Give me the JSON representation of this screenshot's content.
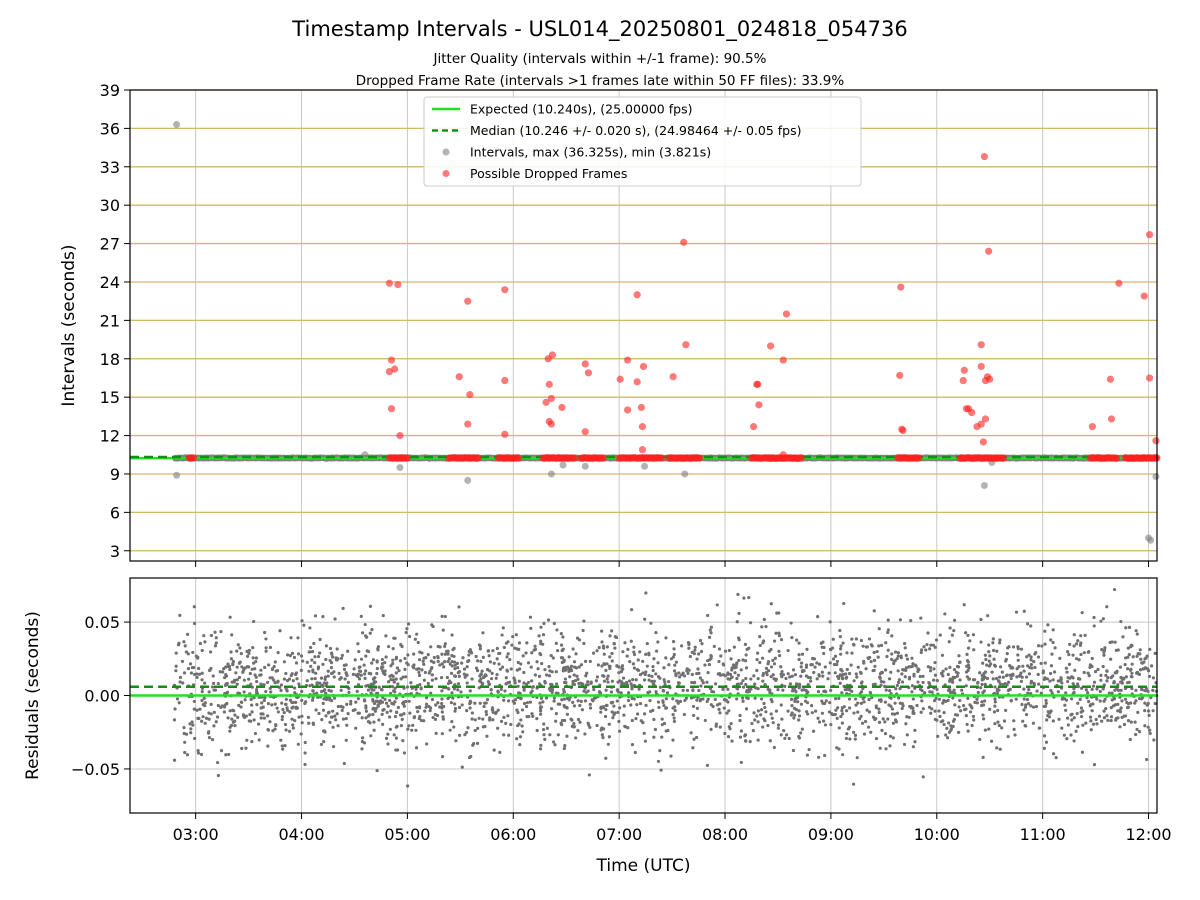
{
  "chart_data": [
    {
      "type": "scatter",
      "title": "Timestamp Intervals - USL014_20250801_024818_054736",
      "subtitle_lines": [
        "Jitter Quality (intervals within +/-1 frame): 90.5%",
        "Dropped Frame Rate (intervals >1 frames late within 50 FF files): 33.9%"
      ],
      "xlabel": "",
      "ylabel": "Intervals (seconds)",
      "xlim_hours": [
        2.38,
        12.08
      ],
      "ylim": [
        2.2,
        39
      ],
      "yticks": [
        3,
        6,
        9,
        12,
        15,
        18,
        21,
        24,
        27,
        30,
        33,
        36,
        39
      ],
      "ytick_labels": [
        "3",
        "6",
        "9",
        "12",
        "15",
        "18",
        "21",
        "24",
        "27",
        "30",
        "33",
        "36",
        "39"
      ],
      "hlines_every_frame_s": 3,
      "grid": true,
      "legend_position": "upper center",
      "legend": [
        "Expected (10.240s), (25.00000 fps)",
        "Median (10.246 +/- 0.020 s), (24.98464 +/- 0.05 fps)",
        "Intervals, max (36.325s), min (3.821s)",
        "Possible Dropped Frames"
      ],
      "expected_interval": 10.24,
      "median_interval": 10.246,
      "interval_range_hours": [
        2.8,
        12.1
      ],
      "gray_outliers": [
        {
          "x": 2.82,
          "y": 36.3
        },
        {
          "x": 2.82,
          "y": 8.9
        },
        {
          "x": 4.6,
          "y": 10.5
        },
        {
          "x": 4.93,
          "y": 9.5
        },
        {
          "x": 5.57,
          "y": 8.5
        },
        {
          "x": 6.36,
          "y": 9.0
        },
        {
          "x": 6.47,
          "y": 9.7
        },
        {
          "x": 6.68,
          "y": 9.6
        },
        {
          "x": 7.24,
          "y": 9.6
        },
        {
          "x": 7.62,
          "y": 9.0
        },
        {
          "x": 10.45,
          "y": 8.1
        },
        {
          "x": 10.52,
          "y": 9.9
        },
        {
          "x": 12.0,
          "y": 4.0
        },
        {
          "x": 12.02,
          "y": 3.82
        },
        {
          "x": 12.07,
          "y": 8.8
        }
      ],
      "dropped_frames": [
        {
          "x": 4.83,
          "y": 23.9
        },
        {
          "x": 4.91,
          "y": 23.8
        },
        {
          "x": 4.85,
          "y": 17.9
        },
        {
          "x": 4.83,
          "y": 17.0
        },
        {
          "x": 4.88,
          "y": 17.2
        },
        {
          "x": 4.85,
          "y": 14.1
        },
        {
          "x": 4.93,
          "y": 12.0
        },
        {
          "x": 5.57,
          "y": 22.5
        },
        {
          "x": 5.49,
          "y": 16.6
        },
        {
          "x": 5.59,
          "y": 15.2
        },
        {
          "x": 5.57,
          "y": 12.9
        },
        {
          "x": 5.92,
          "y": 23.4
        },
        {
          "x": 5.92,
          "y": 16.3
        },
        {
          "x": 5.92,
          "y": 12.1
        },
        {
          "x": 6.33,
          "y": 18.0
        },
        {
          "x": 6.37,
          "y": 18.3
        },
        {
          "x": 6.34,
          "y": 16.0
        },
        {
          "x": 6.36,
          "y": 14.9
        },
        {
          "x": 6.31,
          "y": 14.6
        },
        {
          "x": 6.46,
          "y": 14.2
        },
        {
          "x": 6.34,
          "y": 13.1
        },
        {
          "x": 6.36,
          "y": 12.9
        },
        {
          "x": 6.68,
          "y": 17.6
        },
        {
          "x": 6.71,
          "y": 16.9
        },
        {
          "x": 6.68,
          "y": 12.3
        },
        {
          "x": 7.01,
          "y": 16.4
        },
        {
          "x": 7.08,
          "y": 17.9
        },
        {
          "x": 7.17,
          "y": 23.0
        },
        {
          "x": 7.17,
          "y": 16.2
        },
        {
          "x": 7.08,
          "y": 14.0
        },
        {
          "x": 7.21,
          "y": 14.2
        },
        {
          "x": 7.23,
          "y": 17.4
        },
        {
          "x": 7.22,
          "y": 12.7
        },
        {
          "x": 7.22,
          "y": 10.9
        },
        {
          "x": 7.51,
          "y": 16.6
        },
        {
          "x": 7.61,
          "y": 27.1
        },
        {
          "x": 7.63,
          "y": 19.1
        },
        {
          "x": 8.3,
          "y": 16.0
        },
        {
          "x": 8.31,
          "y": 16.0
        },
        {
          "x": 8.32,
          "y": 14.4
        },
        {
          "x": 8.27,
          "y": 12.7
        },
        {
          "x": 8.43,
          "y": 19.0
        },
        {
          "x": 8.55,
          "y": 17.9
        },
        {
          "x": 8.58,
          "y": 21.5
        },
        {
          "x": 8.55,
          "y": 10.5
        },
        {
          "x": 9.66,
          "y": 23.6
        },
        {
          "x": 9.65,
          "y": 16.7
        },
        {
          "x": 9.67,
          "y": 12.5
        },
        {
          "x": 9.68,
          "y": 12.4
        },
        {
          "x": 10.25,
          "y": 16.3
        },
        {
          "x": 10.26,
          "y": 17.1
        },
        {
          "x": 10.28,
          "y": 14.1
        },
        {
          "x": 10.3,
          "y": 14.1
        },
        {
          "x": 10.33,
          "y": 13.8
        },
        {
          "x": 10.38,
          "y": 12.7
        },
        {
          "x": 10.42,
          "y": 19.1
        },
        {
          "x": 10.42,
          "y": 17.4
        },
        {
          "x": 10.42,
          "y": 12.9
        },
        {
          "x": 10.44,
          "y": 11.5
        },
        {
          "x": 10.45,
          "y": 33.8
        },
        {
          "x": 10.46,
          "y": 16.3
        },
        {
          "x": 10.46,
          "y": 13.3
        },
        {
          "x": 10.48,
          "y": 16.6
        },
        {
          "x": 10.49,
          "y": 26.4
        },
        {
          "x": 10.5,
          "y": 16.4
        },
        {
          "x": 11.47,
          "y": 12.7
        },
        {
          "x": 11.64,
          "y": 16.4
        },
        {
          "x": 11.65,
          "y": 13.3
        },
        {
          "x": 11.72,
          "y": 23.9
        },
        {
          "x": 11.96,
          "y": 22.9
        },
        {
          "x": 12.01,
          "y": 27.7
        },
        {
          "x": 12.01,
          "y": 16.5
        },
        {
          "x": 12.07,
          "y": 11.6
        }
      ],
      "dropped_frame_bands_at_10_24": [
        [
          2.94,
          2.98
        ],
        [
          4.83,
          5.0
        ],
        [
          5.39,
          5.67
        ],
        [
          5.86,
          6.05
        ],
        [
          6.28,
          6.58
        ],
        [
          6.64,
          6.85
        ],
        [
          7.0,
          7.4
        ],
        [
          7.47,
          7.76
        ],
        [
          8.25,
          8.72
        ],
        [
          9.63,
          9.83
        ],
        [
          10.22,
          10.63
        ],
        [
          11.45,
          11.7
        ],
        [
          11.78,
          11.95
        ],
        [
          11.95,
          12.08
        ]
      ]
    },
    {
      "type": "scatter",
      "xlabel": "Time (UTC)",
      "ylabel": "Residuals (seconds)",
      "xlim_hours": [
        2.38,
        12.08
      ],
      "ylim": [
        -0.08,
        0.08
      ],
      "yticks": [
        -0.05,
        0.0,
        0.05
      ],
      "ytick_labels": [
        "−0.05",
        "0.00",
        "0.05"
      ],
      "xticks_hours": [
        3,
        4,
        5,
        6,
        7,
        8,
        9,
        10,
        11,
        12
      ],
      "xtick_labels": [
        "03:00",
        "04:00",
        "05:00",
        "06:00",
        "07:00",
        "08:00",
        "09:00",
        "10:00",
        "11:00",
        "12:00"
      ],
      "expected_residual": 0.0,
      "median_residual": 0.006,
      "residual_spread_sd": 0.02,
      "residual_range_hours": [
        2.8,
        12.08
      ],
      "point_count_approx": 3000,
      "grid": true
    }
  ],
  "colors": {
    "expected_line": "#22e022",
    "median_line": "#138f13",
    "interval_points": "#808080",
    "dropped_points": "#ff2020",
    "frame_lines": "#d4b86a",
    "residual_points": "#707070",
    "grid": "#c8c8c8"
  }
}
